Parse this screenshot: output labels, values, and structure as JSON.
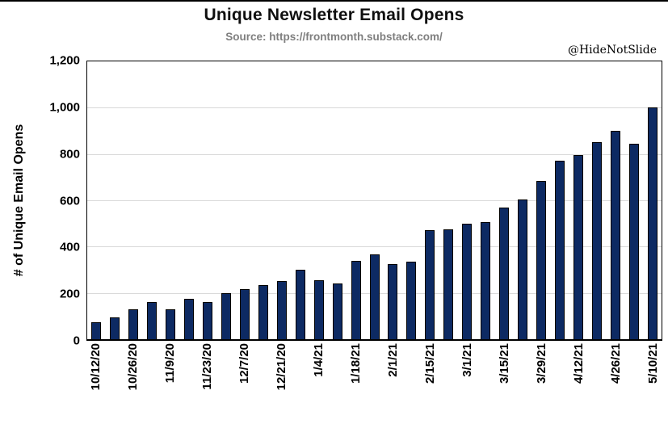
{
  "page": {
    "watermark": "@HideNotSlide"
  },
  "colors": {
    "background": "#ffffff",
    "bar_fill": "#0d2a63",
    "bar_edge": "#000000",
    "gridline": "#d9d9d9",
    "frame": "#000000",
    "subtitle_text": "#7f7f7f",
    "text": "#000000"
  },
  "chart_data": {
    "type": "bar",
    "title": "Unique Newsletter Email Opens",
    "subtitle": "Source: https://frontmonth.substack.com/",
    "xlabel": "",
    "ylabel": "# of Unique Email Opens",
    "ylim": [
      0,
      1200
    ],
    "ytick_interval": 200,
    "yticks": [
      "0",
      "200",
      "400",
      "600",
      "800",
      "1,000",
      "1,200"
    ],
    "grid": "horizontal",
    "legend_position": "none",
    "xtick_label_every": 2,
    "xtick_labels_shown": [
      "10/12/20",
      "10/26/20",
      "11/9/20",
      "11/23/20",
      "12/7/20",
      "12/21/20",
      "1/4/21",
      "1/18/21",
      "2/1/21",
      "2/15/21",
      "3/1/21",
      "3/15/21",
      "3/29/21",
      "4/12/21",
      "4/26/21",
      "5/10/21"
    ],
    "categories": [
      "10/12/20",
      "10/19/20",
      "10/26/20",
      "11/2/20",
      "11/9/20",
      "11/16/20",
      "11/23/20",
      "11/30/20",
      "12/7/20",
      "12/14/20",
      "12/21/20",
      "12/28/20",
      "1/4/21",
      "1/11/21",
      "1/18/21",
      "1/25/21",
      "2/1/21",
      "2/8/21",
      "2/15/21",
      "2/22/21",
      "3/1/21",
      "3/8/21",
      "3/15/21",
      "3/22/21",
      "3/29/21",
      "4/5/21",
      "4/12/21",
      "4/19/21",
      "4/26/21",
      "5/3/21",
      "5/10/21"
    ],
    "values": [
      75,
      95,
      130,
      160,
      130,
      175,
      160,
      200,
      215,
      235,
      250,
      300,
      255,
      240,
      340,
      365,
      325,
      335,
      470,
      475,
      500,
      505,
      570,
      605,
      685,
      770,
      795,
      850,
      900,
      845,
      1000
    ]
  }
}
